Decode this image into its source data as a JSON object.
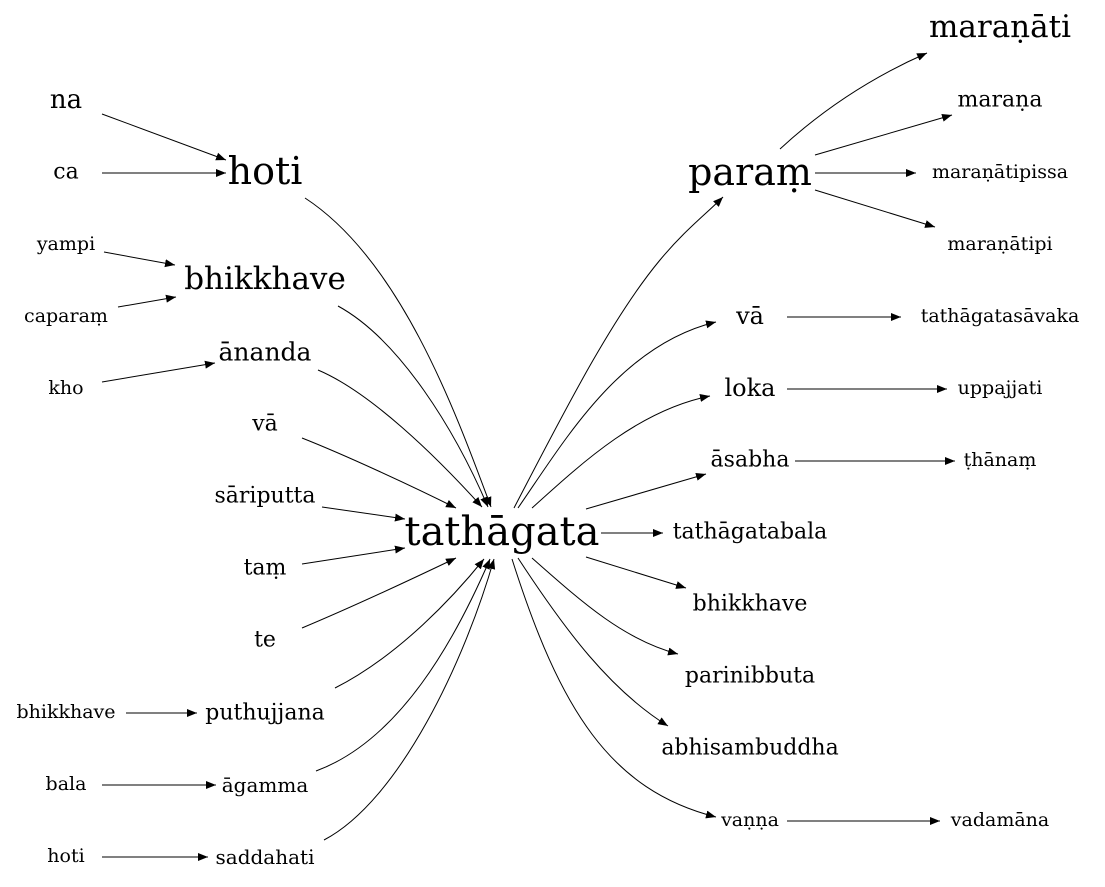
{
  "nodes": {
    "na": "na",
    "ca": "ca",
    "hoti_left": "hoti",
    "yampi": "yampi",
    "caparam": "caparaṃ",
    "bhikkhave_mid": "bhikkhave",
    "kho": "kho",
    "ananda": "ānanda",
    "va_left": "vā",
    "sariputta": "sāriputta",
    "tam": "taṃ",
    "te": "te",
    "bhikkhave_left": "bhikkhave",
    "puthujjana": "puthujjana",
    "bala": "bala",
    "agamma": "āgamma",
    "hoti_bottom": "hoti",
    "saddahati": "saddahati",
    "tathagata": "tathāgata",
    "param": "paraṃ",
    "maranati": "maraṇāti",
    "marana": "maraṇa",
    "maranatipissa": "maraṇātipissa",
    "maranatipi": "maraṇātipi",
    "va_right": "vā",
    "tathagatasavaka": "tathāgatasāvaka",
    "loka": "loka",
    "uppajjati": "uppajjati",
    "asabha": "āsabha",
    "thanam": "ṭhānaṃ",
    "tathagatabala": "tathāgatabala",
    "bhikkhave_right": "bhikkhave",
    "parinibbuta": "parinibbuta",
    "abhisambuddha": "abhisambuddha",
    "vanna": "vaṇṇa",
    "vadamana": "vadamāna"
  },
  "edges": [
    [
      "na",
      "hoti_left"
    ],
    [
      "ca",
      "hoti_left"
    ],
    [
      "yampi",
      "bhikkhave_mid"
    ],
    [
      "caparam",
      "bhikkhave_mid"
    ],
    [
      "kho",
      "ananda"
    ],
    [
      "hoti_left",
      "tathagata"
    ],
    [
      "bhikkhave_mid",
      "tathagata"
    ],
    [
      "ananda",
      "tathagata"
    ],
    [
      "va_left",
      "tathagata"
    ],
    [
      "sariputta",
      "tathagata"
    ],
    [
      "tam",
      "tathagata"
    ],
    [
      "te",
      "tathagata"
    ],
    [
      "puthujjana",
      "tathagata"
    ],
    [
      "agamma",
      "tathagata"
    ],
    [
      "saddahati",
      "tathagata"
    ],
    [
      "bhikkhave_left",
      "puthujjana"
    ],
    [
      "bala",
      "agamma"
    ],
    [
      "hoti_bottom",
      "saddahati"
    ],
    [
      "tathagata",
      "param"
    ],
    [
      "tathagata",
      "va_right"
    ],
    [
      "tathagata",
      "loka"
    ],
    [
      "tathagata",
      "asabha"
    ],
    [
      "tathagata",
      "tathagatabala"
    ],
    [
      "tathagata",
      "bhikkhave_right"
    ],
    [
      "tathagata",
      "parinibbuta"
    ],
    [
      "tathagata",
      "abhisambuddha"
    ],
    [
      "tathagata",
      "vanna"
    ],
    [
      "param",
      "maranati"
    ],
    [
      "param",
      "marana"
    ],
    [
      "param",
      "maranatipissa"
    ],
    [
      "param",
      "maranatipi"
    ],
    [
      "va_right",
      "tathagatasavaka"
    ],
    [
      "loka",
      "uppajjati"
    ],
    [
      "asabha",
      "thanam"
    ],
    [
      "vanna",
      "vadamana"
    ]
  ]
}
